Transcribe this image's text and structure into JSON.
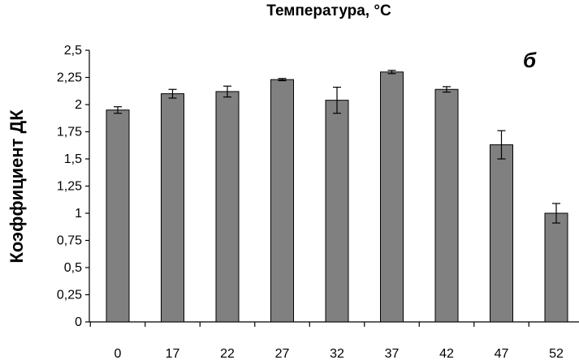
{
  "chart_data": {
    "type": "bar",
    "title": "Температура, °С",
    "ylabel": "Коэффициент ДК",
    "xlabel": "",
    "panel_label": "б",
    "categories": [
      "0",
      "17",
      "22",
      "27",
      "32",
      "37",
      "42",
      "47",
      "52"
    ],
    "values": [
      1.95,
      2.1,
      2.12,
      2.23,
      2.04,
      2.3,
      2.14,
      1.63,
      1.0
    ],
    "errors": [
      0.03,
      0.04,
      0.05,
      0.01,
      0.12,
      0.015,
      0.025,
      0.13,
      0.09
    ],
    "ylim": [
      0,
      2.5
    ],
    "yticks": [
      "0",
      "0,25",
      "0,5",
      "0,75",
      "1",
      "1,25",
      "1,5",
      "1,75",
      "2",
      "2,25",
      "2,5"
    ],
    "grid": false,
    "bar_color": "#808080"
  }
}
